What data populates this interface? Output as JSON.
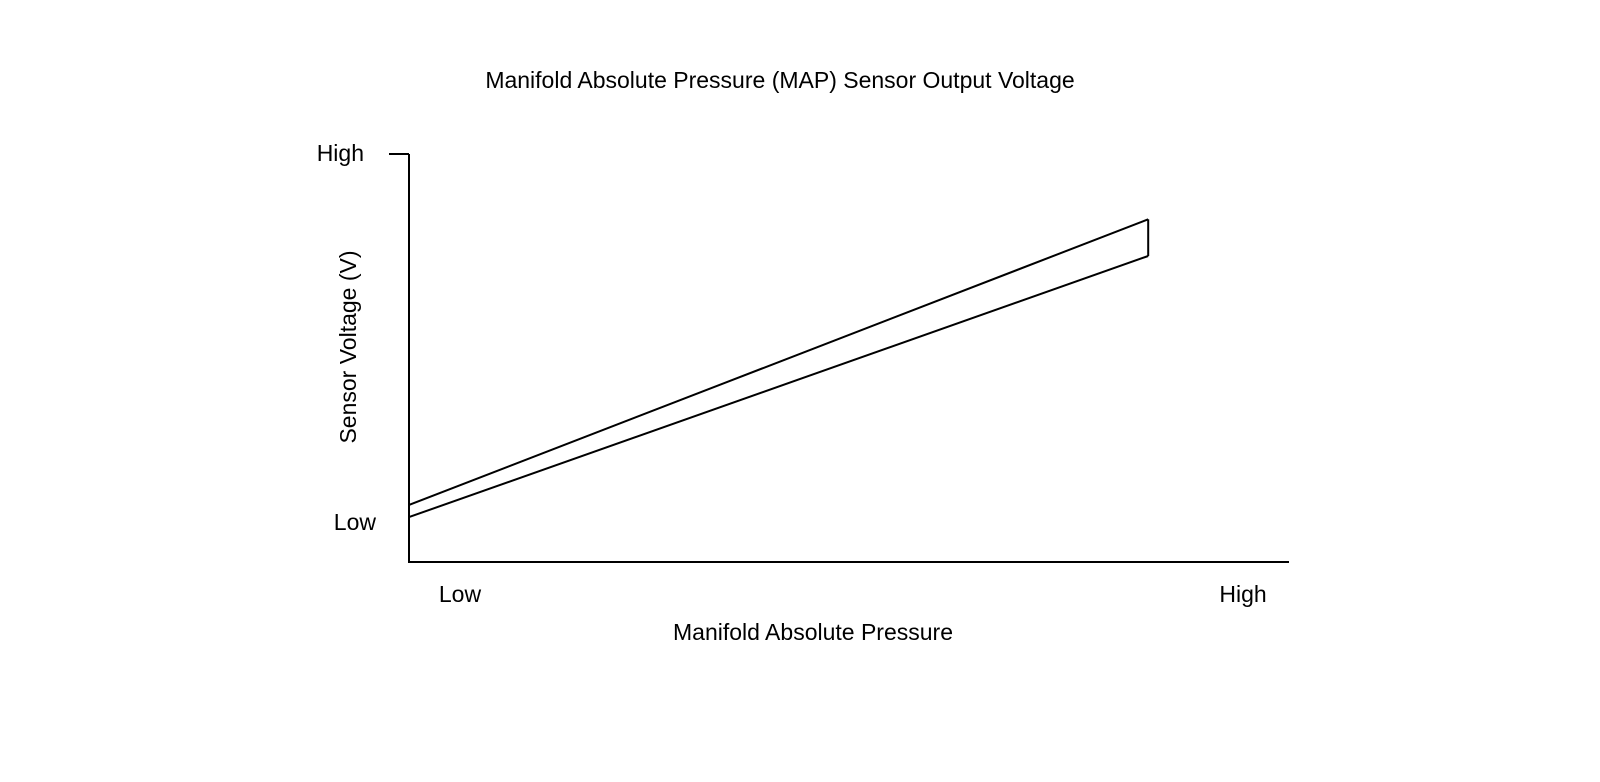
{
  "chart_data": {
    "type": "area",
    "title": "Manifold Absolute Pressure (MAP) Sensor Output Voltage",
    "xlabel": "Manifold Absolute Pressure",
    "ylabel": "Sensor Voltage (V)",
    "x_ticks": [
      "Low",
      "High"
    ],
    "y_ticks": [
      "Low",
      "High"
    ],
    "xlim": [
      0,
      1
    ],
    "ylim": [
      0,
      1
    ],
    "grid": false,
    "legend": "none",
    "series": [
      {
        "x": [
          0,
          0.84
        ],
        "y": [
          0.14,
          0.84
        ]
      },
      {
        "x": [
          0,
          0.84
        ],
        "y": [
          0.11,
          0.75
        ]
      }
    ],
    "colors": {
      "line": "#000000",
      "background": "#ffffff"
    }
  }
}
